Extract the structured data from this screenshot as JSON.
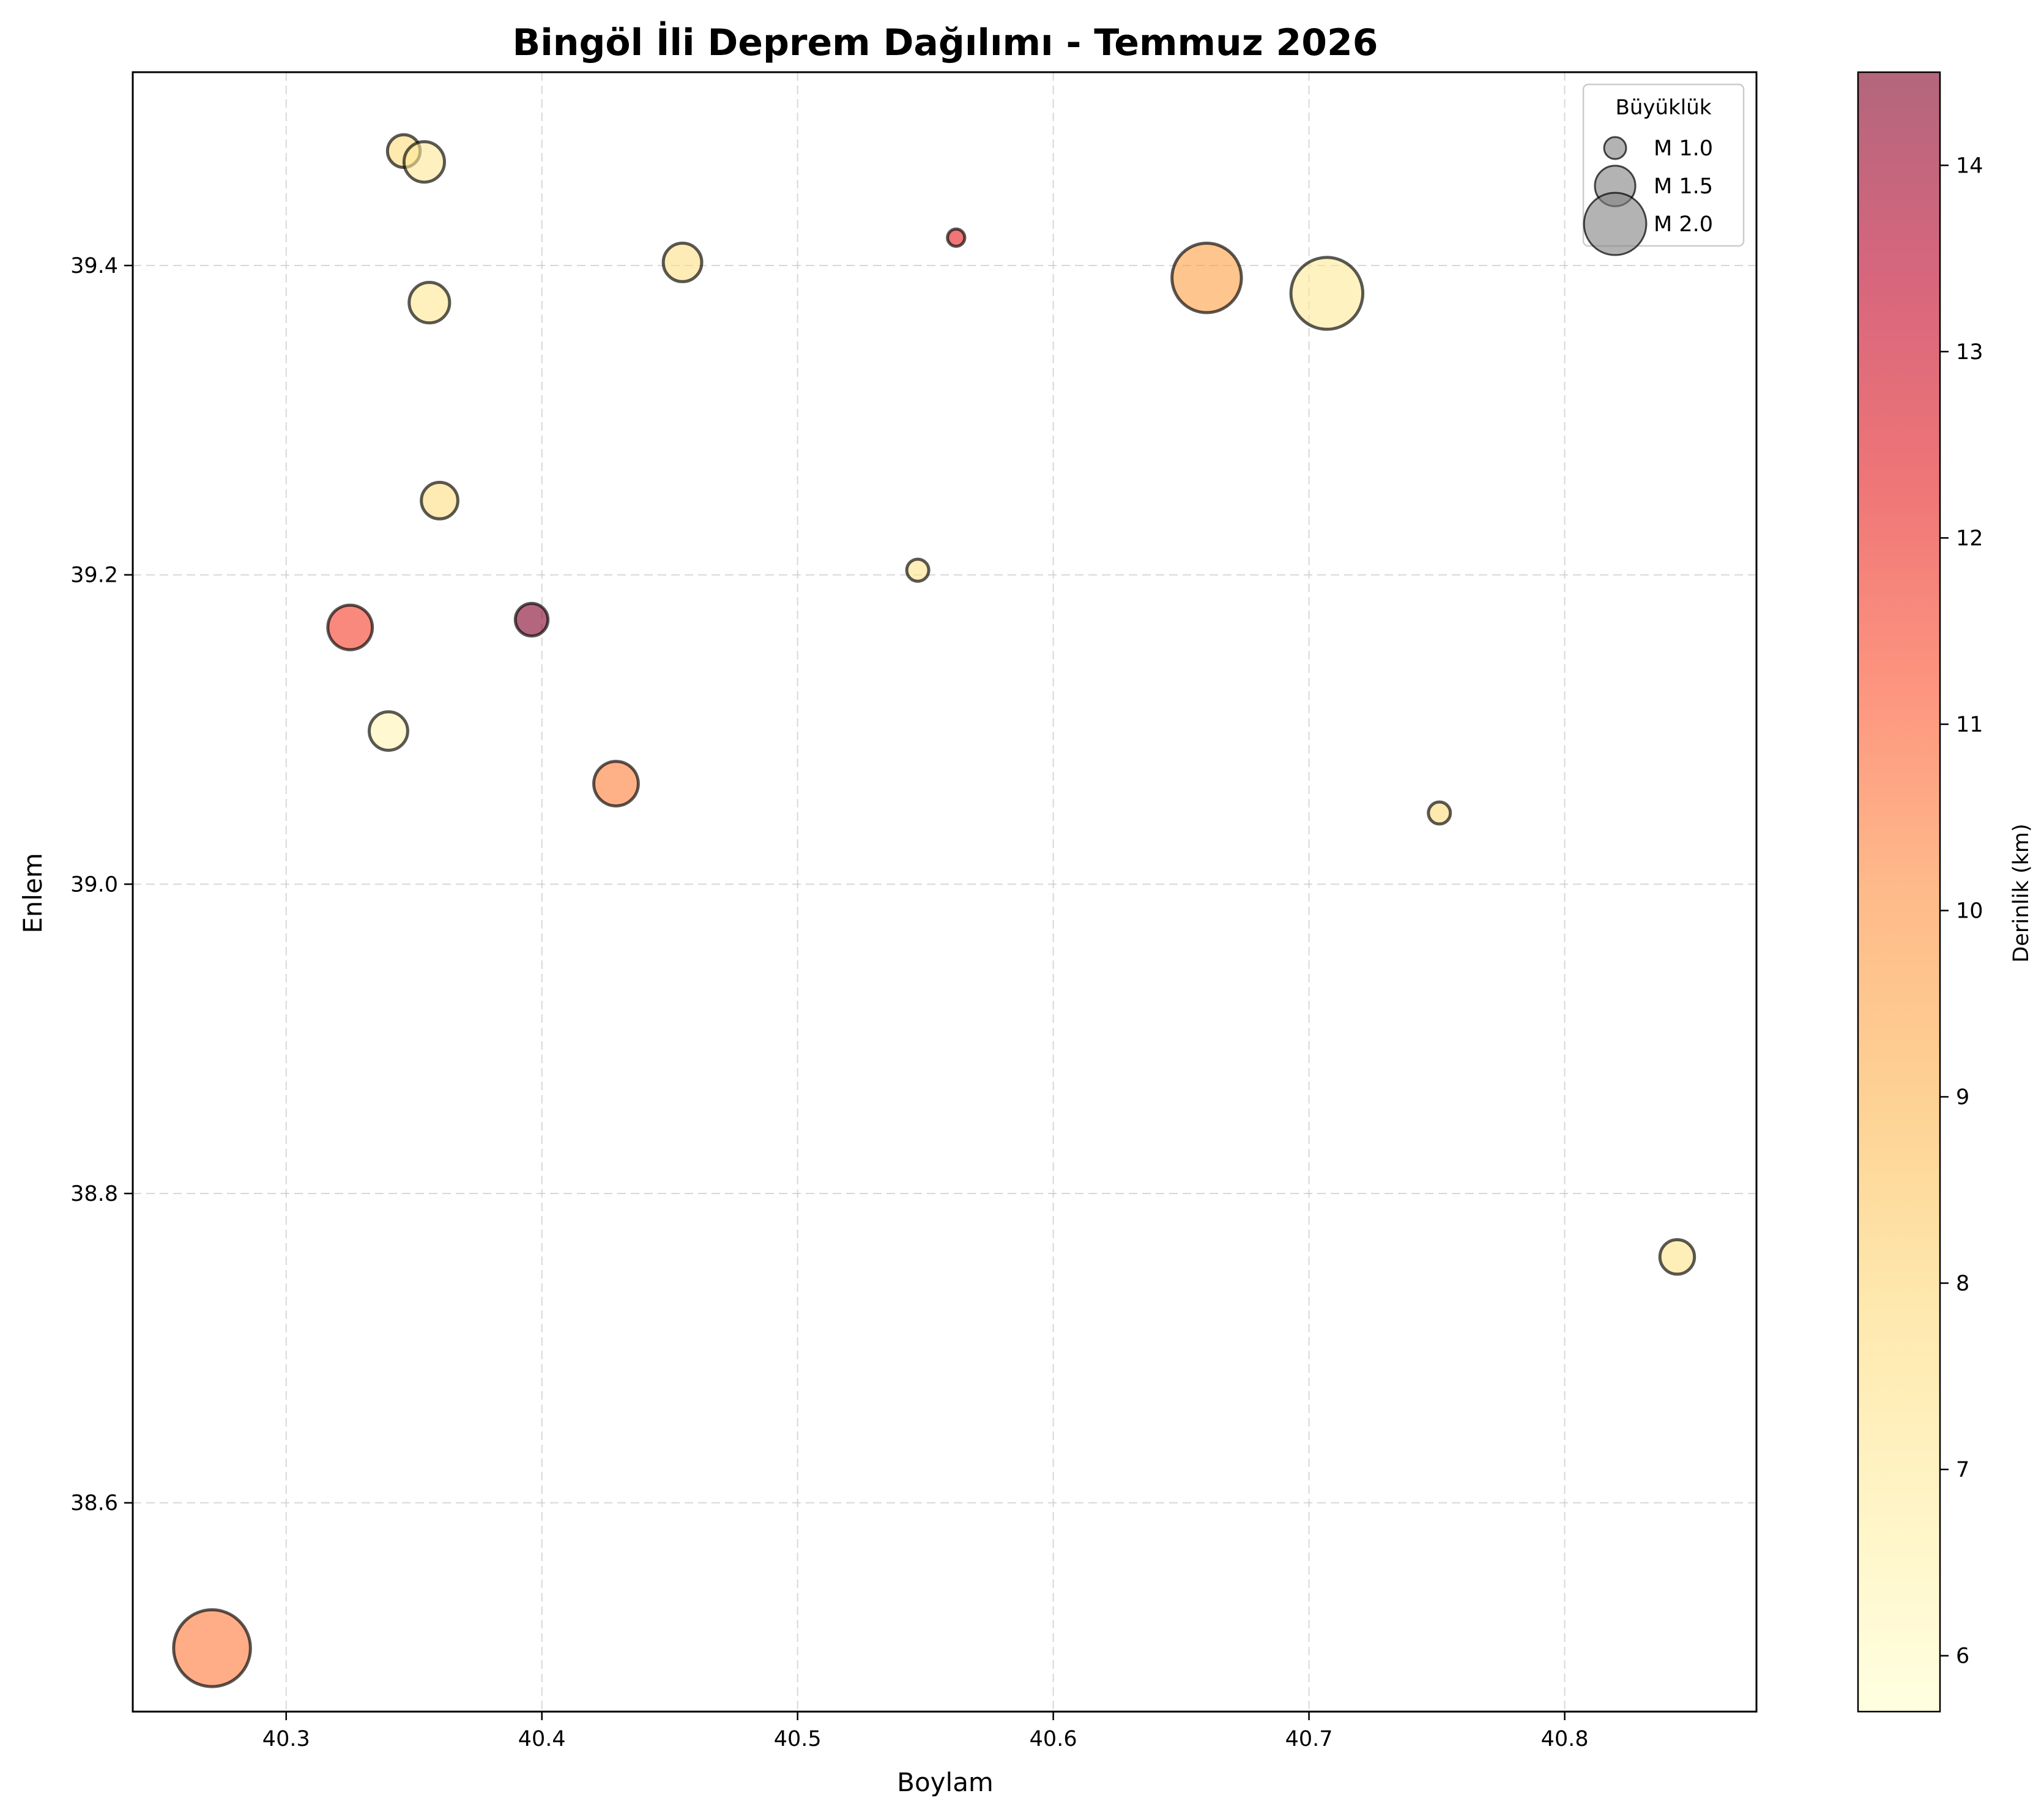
{
  "chart_data": {
    "type": "scatter",
    "title": "Bingöl İli Deprem Dağılımı - Temmuz 2026",
    "xlabel": "Boylam",
    "ylabel": "Enlem",
    "xlim": [
      40.24,
      40.875
    ],
    "ylim": [
      38.465,
      39.525
    ],
    "x_ticks": [
      "40.3",
      "40.4",
      "40.5",
      "40.6",
      "40.7",
      "40.8"
    ],
    "y_ticks": [
      "38.6",
      "38.8",
      "39.0",
      "39.2",
      "39.4"
    ],
    "grid": true,
    "colorbar": {
      "label": "Derinlik (km)",
      "range": [
        5.7,
        14.5
      ],
      "ticks": [
        "6",
        "7",
        "8",
        "9",
        "10",
        "11",
        "12",
        "13",
        "14"
      ],
      "colormap": [
        "#ffffcc",
        "#ffeda0",
        "#fed976",
        "#feb24c",
        "#fd8d3c",
        "#fc4e2a",
        "#e31a1c",
        "#bd0026",
        "#800026"
      ]
    },
    "legend": {
      "title": "Büyüklük",
      "placement": "top-right",
      "entries": [
        {
          "label": "M 1.0",
          "magnitude": 1.0
        },
        {
          "label": "M 1.5",
          "magnitude": 1.5
        },
        {
          "label": "M 2.0",
          "magnitude": 2.0
        }
      ]
    },
    "points": [
      {
        "lon": 40.271,
        "lat": 38.506,
        "magnitude": 2.3,
        "depth": 10.5
      },
      {
        "lon": 40.325,
        "lat": 39.166,
        "magnitude": 1.6,
        "depth": 11.6
      },
      {
        "lon": 40.34,
        "lat": 39.099,
        "magnitude": 1.45,
        "depth": 6.4
      },
      {
        "lon": 40.346,
        "lat": 39.474,
        "magnitude": 1.3,
        "depth": 7.8
      },
      {
        "lon": 40.354,
        "lat": 39.467,
        "magnitude": 1.5,
        "depth": 7.1
      },
      {
        "lon": 40.356,
        "lat": 39.376,
        "magnitude": 1.5,
        "depth": 7.2
      },
      {
        "lon": 40.36,
        "lat": 39.248,
        "magnitude": 1.4,
        "depth": 7.6
      },
      {
        "lon": 40.396,
        "lat": 39.171,
        "magnitude": 1.3,
        "depth": 14.5
      },
      {
        "lon": 40.429,
        "lat": 39.065,
        "magnitude": 1.6,
        "depth": 10.4
      },
      {
        "lon": 40.455,
        "lat": 39.402,
        "magnitude": 1.45,
        "depth": 7.5
      },
      {
        "lon": 40.547,
        "lat": 39.203,
        "magnitude": 1.0,
        "depth": 7.4
      },
      {
        "lon": 40.562,
        "lat": 39.418,
        "magnitude": 0.85,
        "depth": 12.3
      },
      {
        "lon": 40.66,
        "lat": 39.392,
        "magnitude": 2.15,
        "depth": 9.6
      },
      {
        "lon": 40.707,
        "lat": 39.382,
        "magnitude": 2.2,
        "depth": 7.0
      },
      {
        "lon": 40.751,
        "lat": 39.046,
        "magnitude": 1.0,
        "depth": 7.8
      },
      {
        "lon": 40.844,
        "lat": 38.759,
        "magnitude": 1.35,
        "depth": 7.4
      }
    ]
  }
}
